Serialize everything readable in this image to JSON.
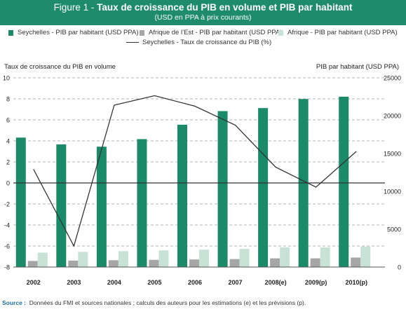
{
  "header": {
    "figure_label": "Figure 1 - ",
    "title": "Taux de croissance du PIB en volume et PIB par habitant",
    "subtitle": "(USD en PPA à prix courants)"
  },
  "legend": {
    "seychelles_gdp": "Seychelles - PIB par habitant (USD PPA)",
    "east_africa_gdp": "Afrique de l’Est - PIB par habitant (USD PPA)",
    "africa_gdp": "Afrique - PIB par habitant (USD PPA)",
    "seychelles_growth": "Seychelles - Taux de croissance du PIB (%)"
  },
  "colors": {
    "header": "#1e8c6c",
    "seychelles": "#1a8a68",
    "east_africa": "#a6a6a6",
    "africa": "#c8e2d6",
    "line": "#333333"
  },
  "chart_data": {
    "type": "bar",
    "categories": [
      "2002",
      "2003",
      "2004",
      "2005",
      "2006",
      "2007",
      "2008(e)",
      "2009(p)",
      "2010(p)"
    ],
    "series": [
      {
        "name": "Seychelles - PIB par habitant (USD PPA)",
        "axis": "right",
        "type": "bar",
        "values": [
          17100,
          16200,
          15900,
          16900,
          18800,
          20600,
          21000,
          22200,
          22500
        ]
      },
      {
        "name": "Afrique de l’Est - PIB par habitant (USD PPA)",
        "axis": "right",
        "type": "bar",
        "values": [
          800,
          850,
          900,
          950,
          1000,
          1050,
          1150,
          1150,
          1250
        ]
      },
      {
        "name": "Afrique - PIB par habitant (USD PPA)",
        "axis": "right",
        "type": "bar",
        "values": [
          1900,
          2000,
          2100,
          2200,
          2300,
          2400,
          2600,
          2600,
          2700
        ]
      },
      {
        "name": "Seychelles - Taux de croissance du PIB (%)",
        "axis": "left",
        "type": "line",
        "values": [
          1.3,
          -6.0,
          7.4,
          8.3,
          7.3,
          5.5,
          1.5,
          -0.4,
          3.0
        ]
      }
    ],
    "ylabel_left": "Taux de croissance du PIB en volume",
    "ylabel_right": "PIB par habitant (USD PPA)",
    "ylim_left": [
      -8,
      10
    ],
    "yticks_left": [
      -8,
      -6,
      -4,
      -2,
      0,
      2,
      4,
      6,
      8,
      10
    ],
    "ylim_right": [
      0,
      25000
    ],
    "yticks_right": [
      0,
      5000,
      10000,
      15000,
      20000,
      25000
    ],
    "grid": "horizontal dashed"
  },
  "source": {
    "label": "Source :",
    "text": "Données du FMI et sources nationales ; calculs des auteurs pour les estimations (e) et les prévisions (p)."
  }
}
